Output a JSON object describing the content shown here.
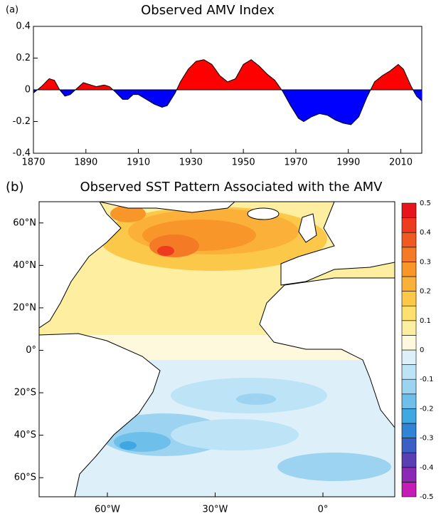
{
  "chart_data": [
    {
      "type": "area",
      "panel": "(a)",
      "title": "Observed AMV Index",
      "x": [
        1870,
        1873,
        1876,
        1878,
        1880,
        1882,
        1884,
        1886,
        1889,
        1892,
        1894,
        1897,
        1899,
        1901,
        1904,
        1906,
        1908,
        1910,
        1913,
        1916,
        1919,
        1921,
        1924,
        1926,
        1929,
        1932,
        1935,
        1938,
        1941,
        1944,
        1947,
        1950,
        1953,
        1956,
        1959,
        1962,
        1965,
        1968,
        1971,
        1973,
        1976,
        1979,
        1982,
        1985,
        1988,
        1991,
        1994,
        1997,
        2000,
        2003,
        2006,
        2009,
        2011,
        2014,
        2016,
        2018
      ],
      "values": [
        -0.02,
        0.02,
        0.07,
        0.06,
        0.0,
        -0.04,
        -0.03,
        0.0,
        0.045,
        0.03,
        0.02,
        0.03,
        0.02,
        -0.01,
        -0.06,
        -0.06,
        -0.03,
        -0.03,
        -0.06,
        -0.09,
        -0.11,
        -0.1,
        -0.02,
        0.05,
        0.13,
        0.18,
        0.19,
        0.16,
        0.09,
        0.05,
        0.07,
        0.16,
        0.19,
        0.15,
        0.1,
        0.06,
        -0.01,
        -0.1,
        -0.18,
        -0.2,
        -0.17,
        -0.15,
        -0.16,
        -0.19,
        -0.21,
        -0.22,
        -0.17,
        -0.05,
        0.05,
        0.09,
        0.12,
        0.16,
        0.13,
        0.02,
        -0.04,
        -0.07
      ],
      "positive_color": "#ff0000",
      "negative_color": "#0000ff",
      "xlim": [
        1870,
        2018
      ],
      "xticks": [
        1870,
        1890,
        1910,
        1930,
        1950,
        1970,
        1990,
        2010
      ],
      "ylim": [
        -0.4,
        0.4
      ],
      "yticks": [
        -0.4,
        -0.2,
        0,
        0.2,
        0.4
      ]
    },
    {
      "type": "map",
      "panel": "(b)",
      "title": "Observed SST Pattern Associated with the AMV",
      "xlim": [
        -79,
        20
      ],
      "ylim": [
        -69,
        70
      ],
      "lon_ticks": [
        {
          "value": -60,
          "label": "60°W"
        },
        {
          "value": -30,
          "label": "30°W"
        },
        {
          "value": 0,
          "label": "0°"
        }
      ],
      "lat_ticks": [
        {
          "value": 60,
          "label": "60°N"
        },
        {
          "value": 40,
          "label": "40°N"
        },
        {
          "value": 20,
          "label": "20°N"
        },
        {
          "value": 0,
          "label": "0°"
        },
        {
          "value": -20,
          "label": "20°S"
        },
        {
          "value": -40,
          "label": "40°S"
        },
        {
          "value": -60,
          "label": "60°S"
        }
      ],
      "colorbar_bounds": [
        -0.5,
        -0.45,
        -0.4,
        -0.35,
        -0.3,
        -0.25,
        -0.2,
        -0.15,
        -0.1,
        -0.05,
        0,
        0.05,
        0.1,
        0.15,
        0.2,
        0.25,
        0.3,
        0.35,
        0.4,
        0.45,
        0.5
      ],
      "colorbar_colors": [
        "#c41cb4",
        "#8a2ab4",
        "#5a3fb4",
        "#3b5fc4",
        "#2f84d4",
        "#3fa8e2",
        "#6ec0ea",
        "#9bd3f0",
        "#bde3f6",
        "#ddf0fa",
        "#fef8dc",
        "#fdeea0",
        "#fde070",
        "#fcc84a",
        "#fbb03a",
        "#f8962a",
        "#f47a26",
        "#f05a22",
        "#ee3a1e",
        "#e8141c"
      ],
      "colorbar_ticks": [
        -0.5,
        -0.4,
        -0.3,
        -0.2,
        -0.1,
        0,
        0.1,
        0.2,
        0.3,
        0.4,
        0.5
      ]
    }
  ]
}
